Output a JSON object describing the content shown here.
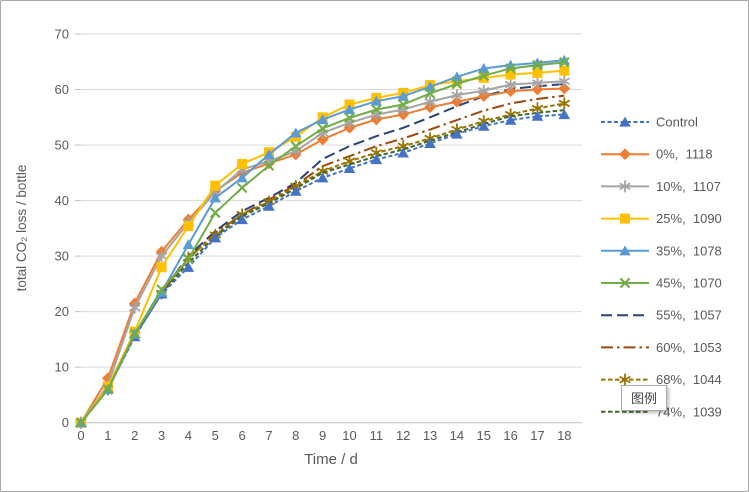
{
  "frame": {
    "background": "#FFFFFF",
    "border_color": "#A6A6A6"
  },
  "tooltip": {
    "label": "图例"
  },
  "chart_data": {
    "type": "line",
    "title": "",
    "xlabel": "Time / d",
    "ylabel": "total CO₂ loss / bottle",
    "x": [
      0,
      1,
      2,
      3,
      4,
      5,
      6,
      7,
      8,
      9,
      10,
      11,
      12,
      13,
      14,
      15,
      16,
      17,
      18
    ],
    "xlim": [
      0,
      18
    ],
    "ylim": [
      0,
      70
    ],
    "yticks": [
      0,
      10,
      20,
      30,
      40,
      50,
      60,
      70
    ],
    "grid": "horizontal-major",
    "gridline_color": "#D9D9D9",
    "axis_line_color": "#BFBFBF",
    "axis_text_color": "#595959",
    "legend_position": "right",
    "legend_text_color": "#595959",
    "series": [
      {
        "name": "Control",
        "color": "#4472C4",
        "line": "dashed",
        "dash": "4 2.5",
        "marker": "triangle",
        "values": [
          0,
          6,
          15.5,
          23.2,
          28,
          33.3,
          36.6,
          39,
          41.7,
          44.1,
          45.8,
          47.4,
          48.6,
          50.3,
          52,
          53.4,
          54.5,
          55.2,
          55.5
        ]
      },
      {
        "name": "0%,  1118",
        "color": "#ED7D31",
        "line": "solid",
        "dash": "",
        "marker": "diamond",
        "values": [
          0,
          8,
          21.5,
          30.8,
          36.6,
          41.7,
          45,
          46.7,
          48.3,
          51,
          53.1,
          54.6,
          55.5,
          56.8,
          57.8,
          58.8,
          59.7,
          60,
          60.2
        ]
      },
      {
        "name": "10%,  1107",
        "color": "#A5A5A5",
        "line": "solid",
        "dash": "",
        "marker": "asterisk",
        "values": [
          0,
          6.8,
          20.7,
          30,
          36,
          41.5,
          45.6,
          47.1,
          48.9,
          52.2,
          54,
          55.5,
          56.4,
          57.8,
          59,
          59.8,
          60.9,
          61.2,
          61.5
        ]
      },
      {
        "name": "25%,  1090",
        "color": "#FFC000",
        "line": "solid",
        "dash": "",
        "marker": "square",
        "values": [
          0,
          6.5,
          16.4,
          28,
          35.4,
          42.7,
          46.6,
          48.7,
          51.5,
          55,
          57.3,
          58.5,
          59.4,
          60.8,
          61.5,
          62.1,
          62.7,
          63,
          63.4
        ]
      },
      {
        "name": "35%,  1078",
        "color": "#5B9BD5",
        "line": "solid",
        "dash": "",
        "marker": "triangle",
        "values": [
          0,
          6,
          16,
          23.5,
          32.1,
          40.5,
          44.1,
          48.3,
          52.2,
          54.6,
          56.4,
          57.9,
          58.8,
          60.5,
          62.3,
          63.8,
          64.4,
          64.8,
          65.3
        ]
      },
      {
        "name": "45%,  1070",
        "color": "#70AD47",
        "line": "solid",
        "dash": "",
        "marker": "x",
        "values": [
          0,
          6,
          16,
          24,
          29.5,
          37.8,
          42.3,
          46.3,
          49.8,
          53,
          54.9,
          56.4,
          57.3,
          59.3,
          61,
          62.5,
          63.8,
          64.4,
          64.9
        ]
      },
      {
        "name": "55%,  1057",
        "color": "#264478",
        "line": "long-dash",
        "dash": "11 5",
        "marker": "none",
        "values": [
          0,
          6,
          15.8,
          23.5,
          30,
          34.5,
          38.1,
          40.5,
          43.2,
          47.5,
          49.8,
          51.6,
          53.1,
          55,
          57,
          58.8,
          60.1,
          60.6,
          61
        ]
      },
      {
        "name": "60%,  1053",
        "color": "#9E480E",
        "line": "dash-dot",
        "dash": "12 4 2.5 4",
        "marker": "none",
        "values": [
          0,
          6,
          15.8,
          23.4,
          29.5,
          34.2,
          37.5,
          40.2,
          42.8,
          46.2,
          48,
          49.8,
          51.2,
          52.8,
          54.5,
          56.2,
          57.5,
          58.3,
          58.9
        ]
      },
      {
        "name": "68%,  1044",
        "color": "#997300",
        "line": "dashed",
        "dash": "4.5 2.5",
        "marker": "asterisk",
        "values": [
          0,
          6,
          15.8,
          23.3,
          29.7,
          33.8,
          37.5,
          39.8,
          42.6,
          45.3,
          47.1,
          48.6,
          49.8,
          51.2,
          52.8,
          54.3,
          55.5,
          56.6,
          57.5
        ]
      },
      {
        "name": "74%,  1039",
        "color": "#43682B",
        "line": "dashed",
        "dash": "4.5 2.5",
        "marker": "none",
        "values": [
          0,
          6,
          15.6,
          23.2,
          28.8,
          33.5,
          37.2,
          39.5,
          42.2,
          45,
          46.5,
          48,
          49.2,
          50.8,
          52.3,
          53.8,
          55.2,
          55.8,
          56.3
        ]
      }
    ]
  }
}
